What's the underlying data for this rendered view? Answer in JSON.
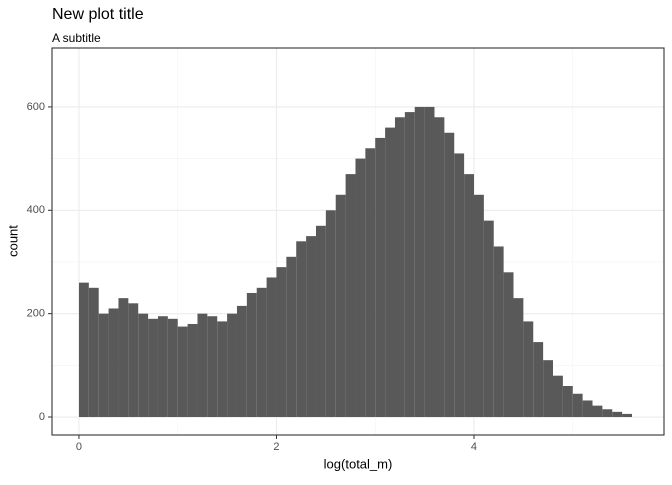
{
  "chart_data": {
    "type": "histogram",
    "title": "New plot title",
    "subtitle": "A subtitle",
    "x_label": "log(total_m)",
    "y_label": "count",
    "bins": [
      0.0,
      0.1,
      0.2,
      0.3,
      0.4,
      0.5,
      0.6,
      0.7,
      0.8,
      0.9,
      1.0,
      1.1,
      1.2,
      1.3,
      1.4,
      1.5,
      1.6,
      1.7,
      1.8,
      1.9,
      2.0,
      2.1,
      2.2,
      2.3,
      2.4,
      2.5,
      2.6,
      2.7,
      2.8,
      2.9,
      3.0,
      3.1,
      3.2,
      3.3,
      3.4,
      3.5,
      3.6,
      3.7,
      3.8,
      3.9,
      4.0,
      4.1,
      4.2,
      4.3,
      4.4,
      4.5,
      4.6,
      4.7,
      4.8,
      4.9,
      5.0,
      5.1,
      5.2,
      5.3,
      5.4,
      5.5,
      5.6
    ],
    "values": [
      260,
      250,
      200,
      210,
      230,
      220,
      200,
      190,
      195,
      190,
      175,
      180,
      200,
      195,
      185,
      200,
      215,
      240,
      250,
      270,
      290,
      310,
      340,
      350,
      370,
      400,
      430,
      470,
      500,
      520,
      540,
      560,
      580,
      590,
      600,
      600,
      580,
      550,
      510,
      470,
      430,
      380,
      330,
      280,
      230,
      185,
      145,
      110,
      80,
      60,
      45,
      32,
      22,
      15,
      10,
      6
    ],
    "color": "#595959",
    "xlim": [
      -0.273,
      5.924
    ],
    "ylim": [
      -34.8,
      714
    ],
    "xticks": [
      0,
      2,
      4
    ],
    "yticks": [
      0,
      200,
      400,
      600
    ],
    "xminor": [
      1,
      3,
      5
    ],
    "yminor": [
      100,
      300,
      500
    ],
    "grid": true
  }
}
